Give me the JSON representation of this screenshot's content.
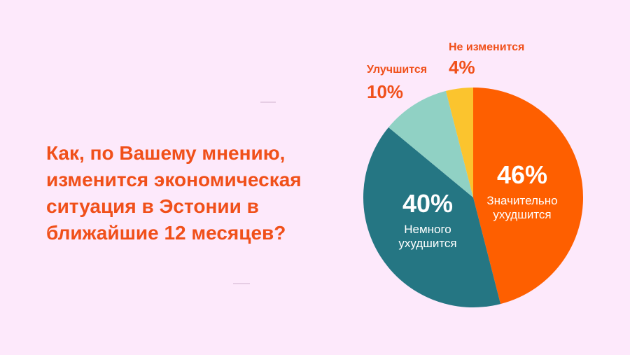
{
  "question": "Как, по Вашему мнению, изменится экономическая ситуация в Эстонии в ближайшие 12 месяцев?",
  "chart_data": {
    "type": "pie",
    "title": "Как, по Вашему мнению, изменится экономическая ситуация в Эстонии в ближайшие 12 месяцев?",
    "unit": "%",
    "slices": [
      {
        "label_lines": [
          "Значительно",
          "ухудшится"
        ],
        "value": 46,
        "display": "46%",
        "color": "#fe5f00"
      },
      {
        "label_lines": [
          "Немного",
          "ухудшится"
        ],
        "value": 40,
        "display": "40%",
        "color": "#257683"
      },
      {
        "label_lines": [
          "Улучшится"
        ],
        "value": 10,
        "display": "10%",
        "color": "#90d1c4"
      },
      {
        "label_lines": [
          "Не изменится"
        ],
        "value": 4,
        "display": "4%",
        "color": "#fbc42e"
      }
    ]
  }
}
